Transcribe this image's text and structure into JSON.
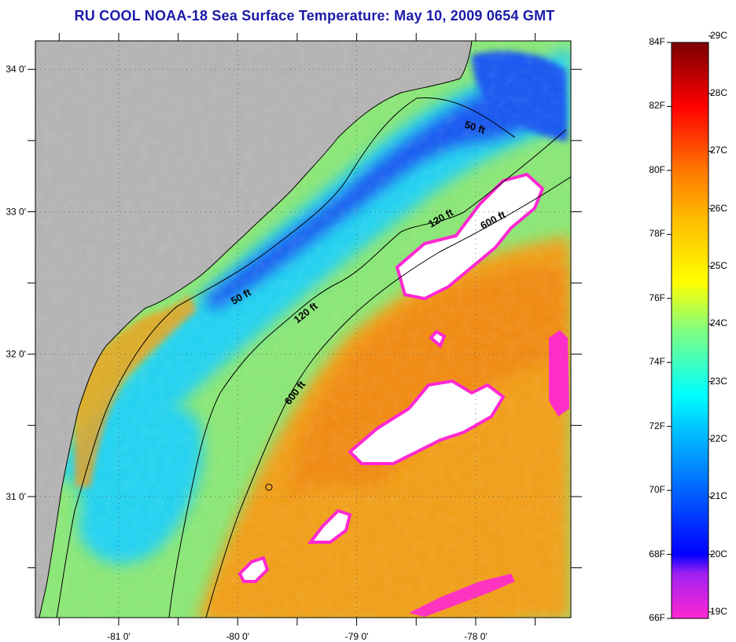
{
  "title": "RU COOL  NOAA-18  Sea Surface Temperature:  May 10, 2009 0654 GMT",
  "map": {
    "lon_range": [
      -81.7,
      -77.2
    ],
    "lat_range": [
      30.15,
      34.2
    ],
    "lon_ticks": [
      {
        "value": -81,
        "label": "-81 0'"
      },
      {
        "value": -80,
        "label": "-80 0'"
      },
      {
        "value": -79,
        "label": "-79 0'"
      },
      {
        "value": -78,
        "label": "-78 0'"
      }
    ],
    "lat_ticks": [
      {
        "value": 34,
        "label": "34 0'"
      },
      {
        "value": 33,
        "label": "33 0'"
      },
      {
        "value": 32,
        "label": "32 0'"
      },
      {
        "value": 31,
        "label": "31 0'"
      }
    ],
    "depth_labels": [
      {
        "text": "50 ft"
      },
      {
        "text": "120 ft"
      },
      {
        "text": "600 ft"
      },
      {
        "text": "50 ft"
      },
      {
        "text": "120 ft"
      },
      {
        "text": "600 ft"
      }
    ],
    "colors": {
      "land": "#b4b4b4",
      "cloud": "#ffffff",
      "cold_water": "#1e5af0",
      "shelf_water": "#28d2f0",
      "mid_water": "#8ce678",
      "warm_water": "#f0a01e",
      "gulf_stream": "#f08c14",
      "cold_edge": "#ff28d2"
    }
  },
  "colorbar": {
    "min_f": 66,
    "max_f": 84,
    "fahrenheit_labels": [
      "84F",
      "82F",
      "80F",
      "78F",
      "76F",
      "74F",
      "72F",
      "70F",
      "68F",
      "66F"
    ],
    "celsius_labels": [
      "29C",
      "28C",
      "27C",
      "26C",
      "25C",
      "24C",
      "23C",
      "22C",
      "21C",
      "20C",
      "19C"
    ],
    "stops": [
      {
        "f": 66,
        "color": "#ff28d2"
      },
      {
        "f": 67.4,
        "color": "#a020f0"
      },
      {
        "f": 68,
        "color": "#0000ff"
      },
      {
        "f": 70,
        "color": "#0064ff"
      },
      {
        "f": 72,
        "color": "#00c8ff"
      },
      {
        "f": 73,
        "color": "#00ffff"
      },
      {
        "f": 75,
        "color": "#80ff80"
      },
      {
        "f": 76.5,
        "color": "#ffff00"
      },
      {
        "f": 78.5,
        "color": "#ffbb00"
      },
      {
        "f": 80,
        "color": "#ff7700"
      },
      {
        "f": 82,
        "color": "#ff0000"
      },
      {
        "f": 84,
        "color": "#7a0000"
      }
    ]
  }
}
